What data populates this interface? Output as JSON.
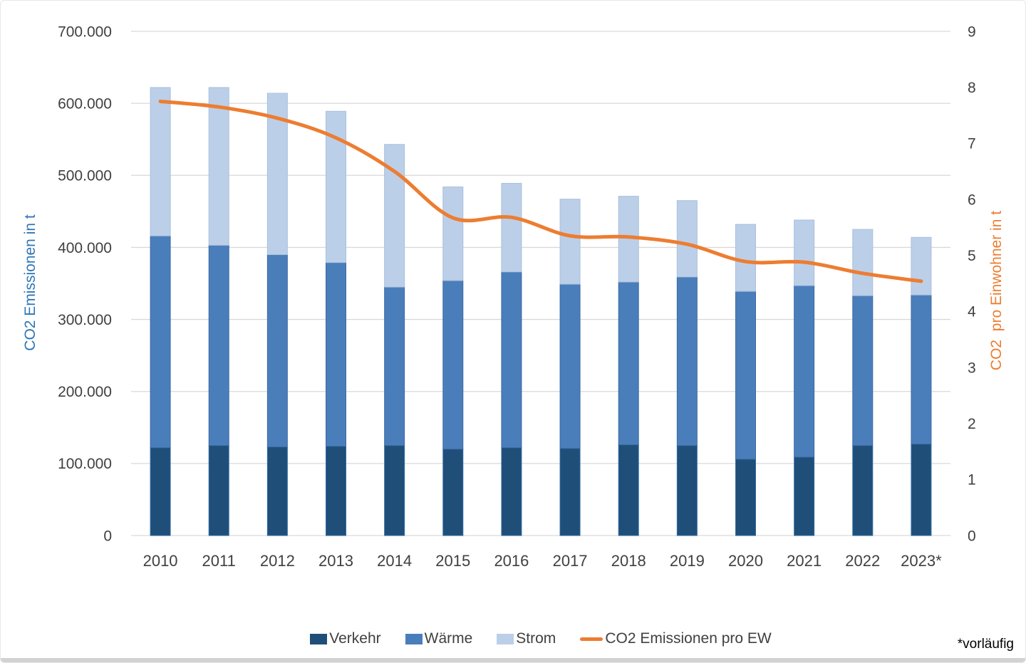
{
  "chart_data": {
    "type": "bar",
    "subtype": "stacked-column-with-line-overlay",
    "title": "",
    "categories": [
      "2010",
      "2011",
      "2012",
      "2013",
      "2014",
      "2015",
      "2016",
      "2017",
      "2018",
      "2019",
      "2020",
      "2021",
      "2022",
      "2023*"
    ],
    "series": [
      {
        "name": "Verkehr",
        "axis": "left",
        "color": "#1F4E79",
        "stroke": "#2E6DA4",
        "values": [
          122000,
          125000,
          123000,
          124000,
          125000,
          120000,
          122000,
          121000,
          126000,
          125000,
          106000,
          109000,
          125000,
          127000
        ]
      },
      {
        "name": "Wärme",
        "axis": "left",
        "color": "#4A7EBB",
        "stroke": "#3E6BA3",
        "values": [
          294000,
          278000,
          267000,
          255000,
          220000,
          234000,
          244000,
          228000,
          226000,
          234000,
          233000,
          238000,
          208000,
          207000
        ]
      },
      {
        "name": "Strom",
        "axis": "left",
        "color": "#BCCFE8",
        "stroke": "#A9BFDD",
        "values": [
          206000,
          219000,
          224000,
          210000,
          198000,
          130000,
          123000,
          118000,
          119000,
          106000,
          93000,
          91000,
          92000,
          80000
        ]
      }
    ],
    "line_series": {
      "name": "CO2 Emissionen pro EW",
      "axis": "right",
      "color": "#ED7D31",
      "values": [
        7.75,
        7.65,
        7.45,
        7.1,
        6.5,
        5.67,
        5.68,
        5.35,
        5.33,
        5.2,
        4.89,
        4.88,
        4.68,
        4.54
      ]
    },
    "left_axis": {
      "title": "CO2 Emissionen in t",
      "title_color": "#2E75B6",
      "min": 0,
      "max": 700000,
      "step": 100000,
      "tick_labels": [
        "0",
        "100.000",
        "200.000",
        "300.000",
        "400.000",
        "500.000",
        "600.000",
        "700.000"
      ]
    },
    "right_axis": {
      "title": "CO2  pro Einwohner in t",
      "title_color": "#ED7D31",
      "min": 0,
      "max": 9,
      "step": 1,
      "tick_labels": [
        "0",
        "1",
        "2",
        "3",
        "4",
        "5",
        "6",
        "7",
        "8",
        "9"
      ]
    },
    "grid": true,
    "gridline_color": "#D9D9D9",
    "tick_text_color": "#404040",
    "legend_position": "bottom",
    "legend": [
      "Verkehr",
      "Wärme",
      "Strom",
      "CO2 Emissionen pro EW"
    ],
    "footnote": "*vorläufig"
  }
}
